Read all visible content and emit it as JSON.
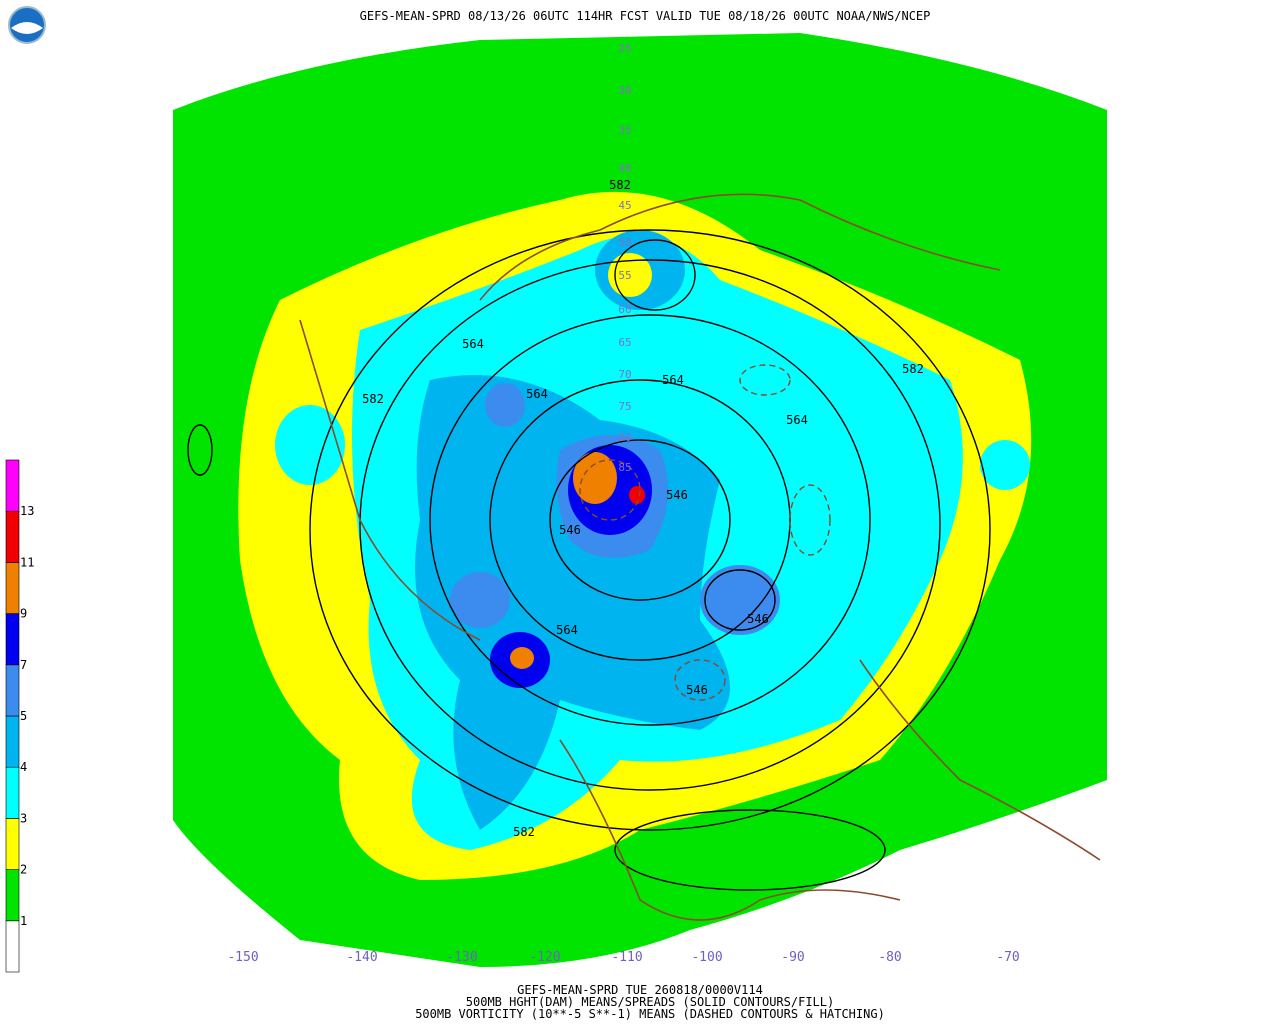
{
  "header": {
    "title": "GEFS-MEAN-SPRD 08/13/26 06UTC 114HR FCST VALID TUE 08/18/26 00UTC NOAA/NWS/NCEP"
  },
  "colorbar": {
    "labels": [
      "1",
      "2",
      "3",
      "4",
      "5",
      "7",
      "9",
      "11",
      "13"
    ],
    "colors": [
      "#ffffff",
      "#00e400",
      "#ffff00",
      "#00ffff",
      "#00b4f0",
      "#3c8cf0",
      "#0000f0",
      "#f08000",
      "#f00000",
      "#ff00ff"
    ]
  },
  "longitude_labels": [
    "-150",
    "-140",
    "-130",
    "-120",
    "-110",
    "-100",
    "-90",
    "-80",
    "-70"
  ],
  "latitude_labels": [
    "25",
    "30",
    "35",
    "40",
    "45",
    "50",
    "55",
    "60",
    "65",
    "70",
    "75",
    "80",
    "85"
  ],
  "contour_labels": [
    "582",
    "564",
    "582",
    "564",
    "546",
    "564",
    "564",
    "582",
    "546",
    "564",
    "582",
    "546",
    "546"
  ],
  "footer": {
    "line1": "GEFS-MEAN-SPRD TUE 260818/0000V114",
    "line2": "500MB HGHT(DAM) MEANS/SPREADS (SOLID CONTOURS/FILL)",
    "line3": "500MB VORTICITY (10**-5 S**-1) MEANS (DASHED CONTOURS & HATCHING)"
  }
}
